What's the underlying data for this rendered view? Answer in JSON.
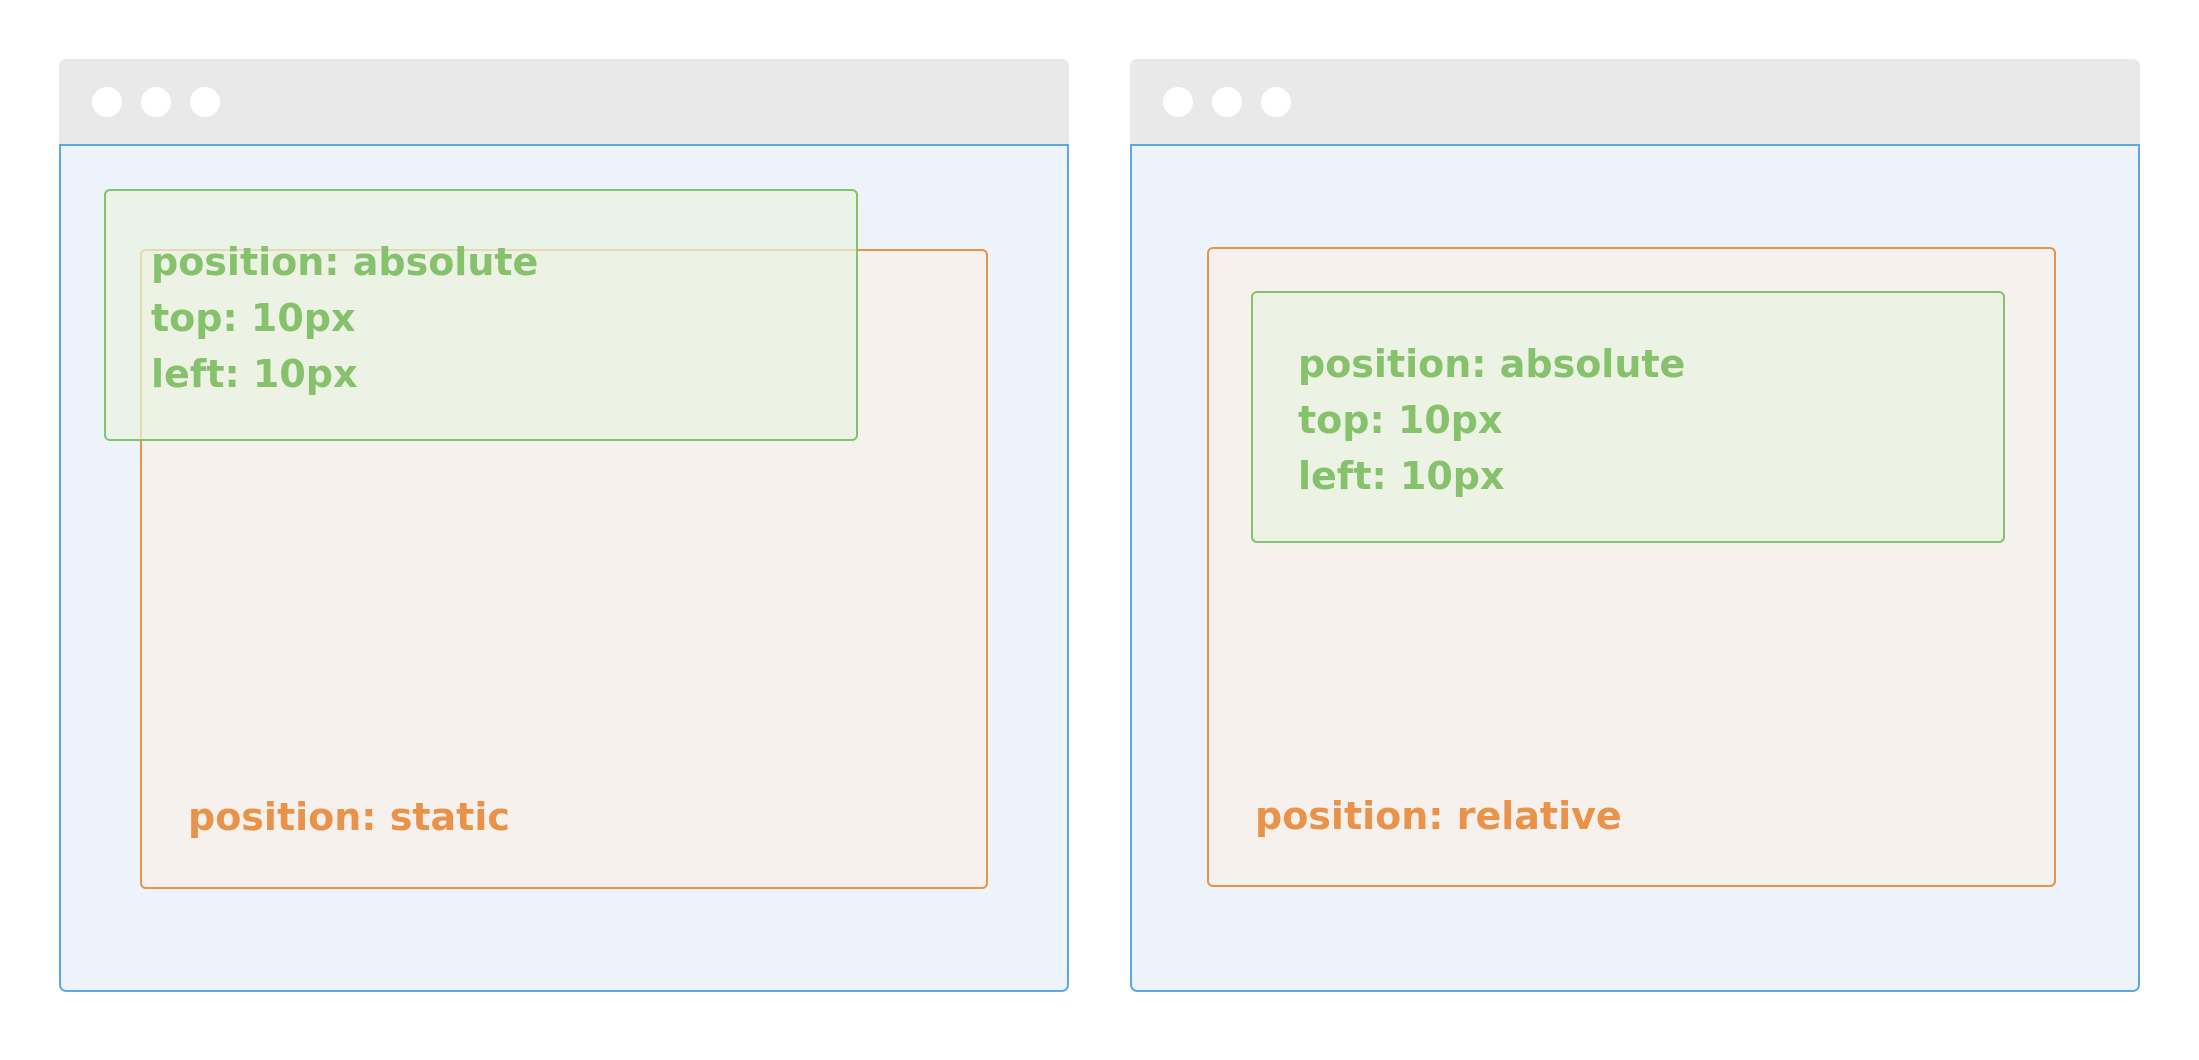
{
  "colors": {
    "titlebar": "#e9e9e9",
    "viewport_bg": "#edf3fa",
    "viewport_border": "#5fa6e6",
    "parent_bg": "#f6f1ec",
    "parent_border": "#e8924a",
    "child_bg": "#eef5e8",
    "child_border": "#86c16b"
  },
  "left_example": {
    "parent_label": "position: static",
    "child_lines": [
      "position: absolute",
      "top: 10px",
      "left: 10px"
    ]
  },
  "right_example": {
    "parent_label": "position: relative",
    "child_lines": [
      "position: absolute",
      "top: 10px",
      "left: 10px"
    ]
  }
}
